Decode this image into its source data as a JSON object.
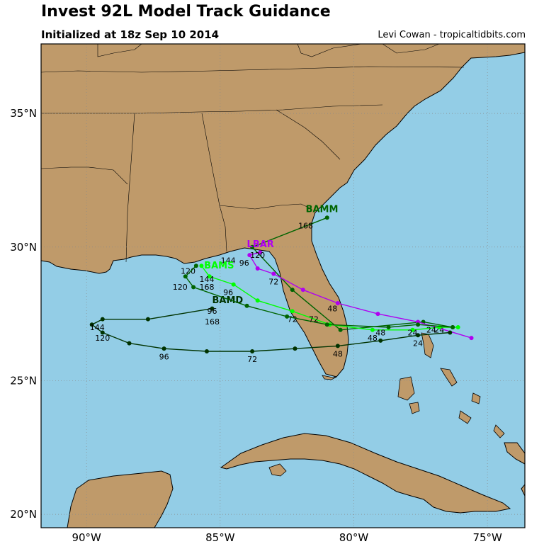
{
  "header": {
    "title": "Invest 92L Model Track Guidance",
    "subtitle": "Initialized at 18z Sep 10 2014",
    "credit": "Levi Cowan - tropicaltidbits.com"
  },
  "colors": {
    "ocean": "#93cde6",
    "land": "#bf9a6a",
    "border": "#000000",
    "grid": "#8a8a8a"
  },
  "axes": {
    "lat_ticks": [
      {
        "value": 35,
        "label": "35°N"
      },
      {
        "value": 30,
        "label": "30°N"
      },
      {
        "value": 25,
        "label": "25°N"
      },
      {
        "value": 20,
        "label": "20°N"
      }
    ],
    "lon_ticks": [
      {
        "value": -90,
        "label": "90°W"
      },
      {
        "value": -85,
        "label": "85°W"
      },
      {
        "value": -80,
        "label": "80°W"
      },
      {
        "value": -75,
        "label": "75°W"
      }
    ]
  },
  "chart_data": {
    "type": "scatter",
    "xlim": [
      -91.7,
      -73.6
    ],
    "ylim": [
      19.5,
      37.6
    ],
    "series": [
      {
        "name": "BAMM",
        "color": "#006400",
        "label_at": [
          -81.8,
          31.3
        ],
        "points": [
          [
            -76.3,
            27.0
          ],
          [
            -77.4,
            27.2
          ],
          [
            -80.5,
            26.9
          ],
          [
            -82.3,
            28.4
          ],
          [
            -83.8,
            30.0
          ],
          [
            -81.0,
            31.1
          ]
        ],
        "labels": [
          {
            "text": "24",
            "at": [
              -76.8,
              26.8
            ]
          },
          {
            "text": "168",
            "at": [
              -81.8,
              30.7
            ]
          },
          {
            "text": "144",
            "at": [
              -84.7,
              29.4
            ]
          }
        ]
      },
      {
        "name": "LBAR",
        "color": "#b000f0",
        "label_at": [
          -84.0,
          30.0
        ],
        "points": [
          [
            -75.6,
            26.6
          ],
          [
            -77.6,
            27.2
          ],
          [
            -79.1,
            27.5
          ],
          [
            -80.6,
            27.9
          ],
          [
            -81.9,
            28.4
          ],
          [
            -83.0,
            29.0
          ],
          [
            -83.6,
            29.2
          ],
          [
            -83.9,
            29.7
          ],
          [
            -83.5,
            29.8
          ]
        ],
        "labels": [
          {
            "text": "72",
            "at": [
              -83.0,
              28.6
            ]
          },
          {
            "text": "96",
            "at": [
              -84.1,
              29.3
            ]
          },
          {
            "text": "120",
            "at": [
              -83.6,
              29.6
            ]
          },
          {
            "text": "48",
            "at": [
              -80.8,
              27.6
            ]
          }
        ]
      },
      {
        "name": "BAMS",
        "color": "#00ff00",
        "label_at": [
          -85.6,
          29.2
        ],
        "points": [
          [
            -76.1,
            27.0
          ],
          [
            -76.8,
            27.0
          ],
          [
            -77.8,
            26.9
          ],
          [
            -79.3,
            26.9
          ],
          [
            -80.9,
            27.1
          ],
          [
            -82.3,
            27.6
          ],
          [
            -83.6,
            28.0
          ],
          [
            -84.5,
            28.6
          ],
          [
            -85.4,
            28.9
          ],
          [
            -85.7,
            29.3
          ]
        ],
        "labels": [
          {
            "text": "24",
            "at": [
              -77.8,
              26.7
            ]
          },
          {
            "text": "48",
            "at": [
              -79.3,
              26.5
            ]
          },
          {
            "text": "72",
            "at": [
              -82.3,
              27.2
            ]
          },
          {
            "text": "96",
            "at": [
              -84.7,
              28.2
            ]
          },
          {
            "text": "120",
            "at": [
              -86.2,
              29.0
            ]
          },
          {
            "text": "144",
            "at": [
              -85.5,
              28.7
            ]
          },
          {
            "text": "168",
            "at": [
              -85.5,
              28.4
            ]
          }
        ]
      },
      {
        "name": "BAMD",
        "color": "#003300",
        "label_at": [
          -85.3,
          27.9
        ],
        "points": [
          [
            -76.4,
            26.8
          ],
          [
            -77.6,
            26.7
          ],
          [
            -79.0,
            26.5
          ],
          [
            -80.6,
            26.3
          ],
          [
            -82.2,
            26.2
          ],
          [
            -83.8,
            26.1
          ],
          [
            -85.5,
            26.1
          ],
          [
            -87.1,
            26.2
          ],
          [
            -88.4,
            26.4
          ],
          [
            -89.4,
            26.8
          ],
          [
            -89.8,
            27.1
          ],
          [
            -89.4,
            27.3
          ],
          [
            -87.7,
            27.3
          ],
          [
            -85.3,
            27.7
          ]
        ],
        "labels": [
          {
            "text": "24",
            "at": [
              -77.6,
              26.3
            ]
          },
          {
            "text": "48",
            "at": [
              -80.6,
              25.9
            ]
          },
          {
            "text": "72",
            "at": [
              -83.8,
              25.7
            ]
          },
          {
            "text": "96",
            "at": [
              -87.1,
              25.8
            ]
          },
          {
            "text": "120",
            "at": [
              -89.4,
              26.5
            ]
          },
          {
            "text": "144",
            "at": [
              -89.6,
              26.9
            ]
          },
          {
            "text": "96",
            "at": [
              -85.3,
              27.5
            ]
          },
          {
            "text": "168",
            "at": [
              -85.3,
              27.1
            ]
          }
        ]
      },
      {
        "name": "",
        "color": "#006400",
        "label_at": null,
        "points": [
          [
            -76.3,
            27.0
          ],
          [
            -77.6,
            27.1
          ],
          [
            -78.7,
            27.0
          ],
          [
            -81.0,
            27.1
          ],
          [
            -82.5,
            27.4
          ],
          [
            -84.0,
            27.8
          ],
          [
            -86.0,
            28.5
          ],
          [
            -86.3,
            28.9
          ],
          [
            -85.9,
            29.3
          ]
        ],
        "labels": [
          {
            "text": "24",
            "at": [
              -77.1,
              26.8
            ]
          },
          {
            "text": "48",
            "at": [
              -79.0,
              26.7
            ]
          },
          {
            "text": "72",
            "at": [
              -81.5,
              27.2
            ]
          },
          {
            "text": "120",
            "at": [
              -86.5,
              28.4
            ]
          }
        ]
      }
    ]
  }
}
